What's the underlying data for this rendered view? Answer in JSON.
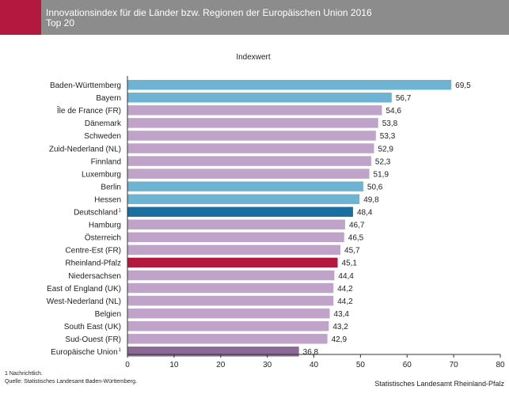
{
  "header": {
    "title_line1": "Innovationsindex für die Länder bzw. Regionen der Europäischen Union 2016",
    "title_line2": "Top 20"
  },
  "footer": {
    "note": "1 Nachrichtlich.",
    "source_left": "Quelle: Statistisches Landesamt Baden-Württemberg.",
    "source_right": "Statistisches Landesamt Rheinland-Pfalz"
  },
  "colors": {
    "header_bg": "#8c8c8c",
    "accent": "#b5183f",
    "regions": "#c0a3c8",
    "germany_states": "#6fb3d2",
    "deutschland": "#1a6fa0",
    "rheinland_pfalz": "#b5183f",
    "eu": "#8a6a94"
  },
  "chart_data": {
    "type": "bar",
    "orientation": "horizontal",
    "title": "Indexwert",
    "xlim": [
      0,
      80
    ],
    "xticks": [
      0,
      10,
      20,
      30,
      40,
      50,
      60,
      70,
      80
    ],
    "categories": [
      "Baden-Württemberg",
      "Bayern",
      "Île de France (FR)",
      "Dänemark",
      "Schweden",
      "Zuid-Nederland (NL)",
      "Finnland",
      "Luxemburg",
      "Berlin",
      "Hessen",
      "Deutschland",
      "Hamburg",
      "Österreich",
      "Centre-Est (FR)",
      "Rheinland-Pfalz",
      "Niedersachsen",
      "East of England (UK)",
      "West-Nederland (NL)",
      "Belgien",
      "South East (UK)",
      "Sud-Ouest (FR)",
      "Europäische Union"
    ],
    "footnote_marks": [
      "",
      "",
      "",
      "",
      "",
      "",
      "",
      "",
      "",
      "",
      "1",
      "",
      "",
      "",
      "",
      "",
      "",
      "",
      "",
      "",
      "",
      "1"
    ],
    "values": [
      69.5,
      56.7,
      54.6,
      53.8,
      53.3,
      52.9,
      52.3,
      51.9,
      50.6,
      49.8,
      48.4,
      46.7,
      46.5,
      45.7,
      45.1,
      44.4,
      44.2,
      44.2,
      43.4,
      43.2,
      42.9,
      36.8
    ],
    "value_labels": [
      "69,5",
      "56,7",
      "54,6",
      "53,8",
      "53,3",
      "52,9",
      "52,3",
      "51,9",
      "50,6",
      "49,8",
      "48,4",
      "46,7",
      "46,5",
      "45,7",
      "45,1",
      "44,4",
      "44,2",
      "44,2",
      "43,4",
      "43,2",
      "42,9",
      "36,8"
    ],
    "bar_groups": [
      "germany_states",
      "germany_states",
      "regions",
      "regions",
      "regions",
      "regions",
      "regions",
      "regions",
      "germany_states",
      "germany_states",
      "deutschland",
      "regions",
      "regions",
      "regions",
      "rheinland_pfalz",
      "regions",
      "regions",
      "regions",
      "regions",
      "regions",
      "regions",
      "eu"
    ],
    "grid": false
  }
}
